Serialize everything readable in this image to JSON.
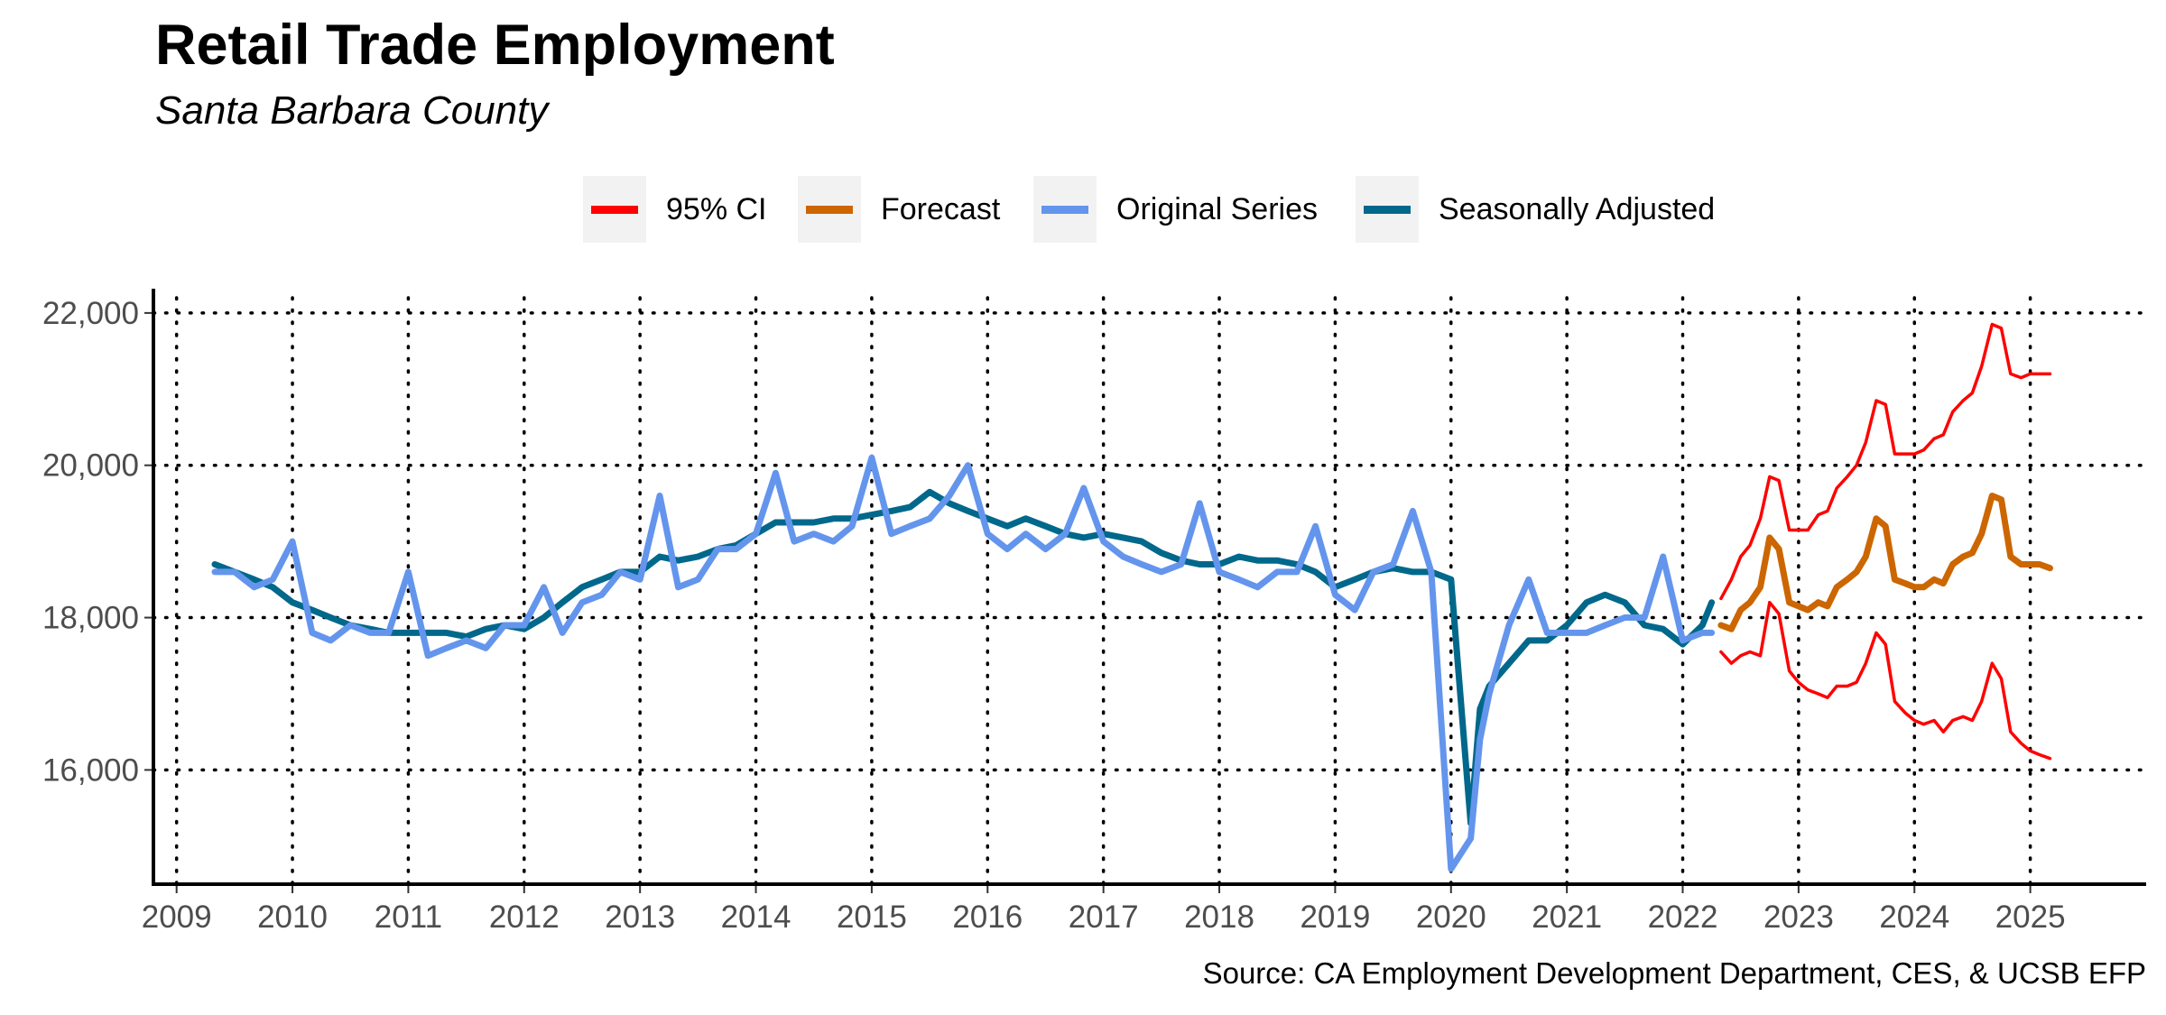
{
  "title": "Retail Trade Employment",
  "subtitle": "Santa Barbara County",
  "source": "Source: CA Employment Development Department, CES, & UCSB EFP",
  "legend": [
    {
      "label": "95% CI",
      "color": "#ff0000"
    },
    {
      "label": "Forecast",
      "color": "#cc6600"
    },
    {
      "label": "Original Series",
      "color": "#6495ed"
    },
    {
      "label": "Seasonally Adjusted",
      "color": "#00688b"
    }
  ],
  "chart_data": {
    "type": "line",
    "title": "Retail Trade Employment",
    "subtitle": "Santa Barbara County",
    "xlabel": "",
    "ylabel": "",
    "xlim": [
      2008.8,
      2026.0
    ],
    "ylim": [
      14500,
      22200
    ],
    "x_ticks": [
      2009,
      2010,
      2011,
      2012,
      2013,
      2014,
      2015,
      2016,
      2017,
      2018,
      2019,
      2020,
      2021,
      2022,
      2023,
      2024,
      2025
    ],
    "y_ticks": [
      {
        "value": 16000,
        "label": "16,000"
      },
      {
        "value": 18000,
        "label": "18,000"
      },
      {
        "value": 20000,
        "label": "20,000"
      },
      {
        "value": 22000,
        "label": "22,000"
      }
    ],
    "grid": "dotted major lines",
    "legend_position": "top",
    "series": [
      {
        "name": "Original Series",
        "color": "#6495ed",
        "x": [
          2009.33,
          2009.5,
          2009.67,
          2009.83,
          2010.0,
          2010.17,
          2010.33,
          2010.5,
          2010.67,
          2010.83,
          2011.0,
          2011.17,
          2011.33,
          2011.5,
          2011.67,
          2011.83,
          2012.0,
          2012.17,
          2012.33,
          2012.5,
          2012.67,
          2012.83,
          2013.0,
          2013.17,
          2013.33,
          2013.5,
          2013.67,
          2013.83,
          2014.0,
          2014.17,
          2014.33,
          2014.5,
          2014.67,
          2014.83,
          2015.0,
          2015.17,
          2015.33,
          2015.5,
          2015.67,
          2015.83,
          2016.0,
          2016.17,
          2016.33,
          2016.5,
          2016.67,
          2016.83,
          2017.0,
          2017.17,
          2017.33,
          2017.5,
          2017.67,
          2017.83,
          2018.0,
          2018.17,
          2018.33,
          2018.5,
          2018.67,
          2018.83,
          2019.0,
          2019.17,
          2019.33,
          2019.5,
          2019.67,
          2019.83,
          2020.0,
          2020.17,
          2020.25,
          2020.33,
          2020.5,
          2020.67,
          2020.83,
          2021.0,
          2021.17,
          2021.33,
          2021.5,
          2021.67,
          2021.83,
          2022.0,
          2022.17,
          2022.25
        ],
        "y": [
          18600,
          18600,
          18400,
          18500,
          19000,
          17800,
          17700,
          17900,
          17800,
          17800,
          18600,
          17500,
          17600,
          17700,
          17600,
          17900,
          17900,
          18400,
          17800,
          18200,
          18300,
          18600,
          18500,
          19600,
          18400,
          18500,
          18900,
          18900,
          19100,
          19900,
          19000,
          19100,
          19000,
          19200,
          20100,
          19100,
          19200,
          19300,
          19600,
          20000,
          19100,
          18900,
          19100,
          18900,
          19100,
          19700,
          19000,
          18800,
          18700,
          18600,
          18700,
          19500,
          18600,
          18500,
          18400,
          18600,
          18600,
          19200,
          18300,
          18100,
          18600,
          18700,
          19400,
          18600,
          14700,
          15100,
          16400,
          17000,
          17900,
          18500,
          17800,
          17800,
          17800,
          17900,
          18000,
          18000,
          18800,
          17700,
          17800,
          17800
        ]
      },
      {
        "name": "Seasonally Adjusted",
        "color": "#00688b",
        "x": [
          2009.33,
          2009.5,
          2009.67,
          2009.83,
          2010.0,
          2010.17,
          2010.33,
          2010.5,
          2010.67,
          2010.83,
          2011.0,
          2011.17,
          2011.33,
          2011.5,
          2011.67,
          2011.83,
          2012.0,
          2012.17,
          2012.33,
          2012.5,
          2012.67,
          2012.83,
          2013.0,
          2013.17,
          2013.33,
          2013.5,
          2013.67,
          2013.83,
          2014.0,
          2014.17,
          2014.33,
          2014.5,
          2014.67,
          2014.83,
          2015.0,
          2015.17,
          2015.33,
          2015.5,
          2015.67,
          2015.83,
          2016.0,
          2016.17,
          2016.33,
          2016.5,
          2016.67,
          2016.83,
          2017.0,
          2017.17,
          2017.33,
          2017.5,
          2017.67,
          2017.83,
          2018.0,
          2018.17,
          2018.33,
          2018.5,
          2018.67,
          2018.83,
          2019.0,
          2019.17,
          2019.33,
          2019.5,
          2019.67,
          2019.83,
          2020.0,
          2020.17,
          2020.25,
          2020.33,
          2020.5,
          2020.67,
          2020.83,
          2021.0,
          2021.17,
          2021.33,
          2021.5,
          2021.67,
          2021.83,
          2022.0,
          2022.17,
          2022.25
        ],
        "y": [
          18700,
          18600,
          18500,
          18400,
          18200,
          18100,
          18000,
          17900,
          17850,
          17800,
          17800,
          17800,
          17800,
          17750,
          17850,
          17900,
          17850,
          18000,
          18200,
          18400,
          18500,
          18600,
          18600,
          18800,
          18750,
          18800,
          18900,
          18950,
          19100,
          19250,
          19250,
          19250,
          19300,
          19300,
          19350,
          19400,
          19450,
          19650,
          19500,
          19400,
          19300,
          19200,
          19300,
          19200,
          19100,
          19050,
          19100,
          19050,
          19000,
          18850,
          18750,
          18700,
          18700,
          18800,
          18750,
          18750,
          18700,
          18600,
          18400,
          18500,
          18600,
          18650,
          18600,
          18600,
          18500,
          15300,
          16800,
          17100,
          17400,
          17700,
          17700,
          17900,
          18200,
          18300,
          18200,
          17900,
          17850,
          17650,
          17900,
          18200
        ]
      },
      {
        "name": "Forecast",
        "color": "#cc6600",
        "x": [
          2022.33,
          2022.42,
          2022.5,
          2022.58,
          2022.67,
          2022.75,
          2022.83,
          2022.92,
          2023.0,
          2023.08,
          2023.17,
          2023.25,
          2023.33,
          2023.42,
          2023.5,
          2023.58,
          2023.67,
          2023.75,
          2023.83,
          2023.92,
          2024.0,
          2024.08,
          2024.17,
          2024.25,
          2024.33,
          2024.42,
          2024.5,
          2024.58,
          2024.67,
          2024.75,
          2024.83,
          2024.92,
          2025.0,
          2025.08,
          2025.17
        ],
        "y": [
          17900,
          17850,
          18100,
          18200,
          18400,
          19050,
          18900,
          18200,
          18150,
          18100,
          18200,
          18150,
          18400,
          18500,
          18600,
          18800,
          19300,
          19200,
          18500,
          18450,
          18400,
          18400,
          18500,
          18450,
          18700,
          18800,
          18850,
          19100,
          19600,
          19550,
          18800,
          18700,
          18700,
          18700,
          18650
        ]
      },
      {
        "name": "95% CI Upper",
        "color": "#ff0000",
        "x": [
          2022.33,
          2022.42,
          2022.5,
          2022.58,
          2022.67,
          2022.75,
          2022.83,
          2022.92,
          2023.0,
          2023.08,
          2023.17,
          2023.25,
          2023.33,
          2023.42,
          2023.5,
          2023.58,
          2023.67,
          2023.75,
          2023.83,
          2023.92,
          2024.0,
          2024.08,
          2024.17,
          2024.25,
          2024.33,
          2024.42,
          2024.5,
          2024.58,
          2024.67,
          2024.75,
          2024.83,
          2024.92,
          2025.0,
          2025.08,
          2025.17
        ],
        "y": [
          18250,
          18500,
          18800,
          18950,
          19300,
          19850,
          19800,
          19150,
          19150,
          19150,
          19350,
          19400,
          19700,
          19850,
          20000,
          20300,
          20850,
          20800,
          20150,
          20150,
          20150,
          20200,
          20350,
          20400,
          20700,
          20850,
          20950,
          21300,
          21850,
          21800,
          21200,
          21150,
          21200,
          21200,
          21200
        ]
      },
      {
        "name": "95% CI Lower",
        "color": "#ff0000",
        "x": [
          2022.33,
          2022.42,
          2022.5,
          2022.58,
          2022.67,
          2022.75,
          2022.83,
          2022.92,
          2023.0,
          2023.08,
          2023.17,
          2023.25,
          2023.33,
          2023.42,
          2023.5,
          2023.58,
          2023.67,
          2023.75,
          2023.83,
          2023.92,
          2024.0,
          2024.08,
          2024.17,
          2024.25,
          2024.33,
          2024.42,
          2024.5,
          2024.58,
          2024.67,
          2024.75,
          2024.83,
          2024.92,
          2025.0,
          2025.08,
          2025.17
        ],
        "y": [
          17550,
          17400,
          17500,
          17550,
          17500,
          18200,
          18050,
          17300,
          17150,
          17050,
          17000,
          16950,
          17100,
          17100,
          17150,
          17400,
          17800,
          17650,
          16900,
          16750,
          16650,
          16600,
          16650,
          16500,
          16650,
          16700,
          16650,
          16900,
          17400,
          17200,
          16500,
          16350,
          16250,
          16200,
          16150
        ]
      }
    ]
  }
}
